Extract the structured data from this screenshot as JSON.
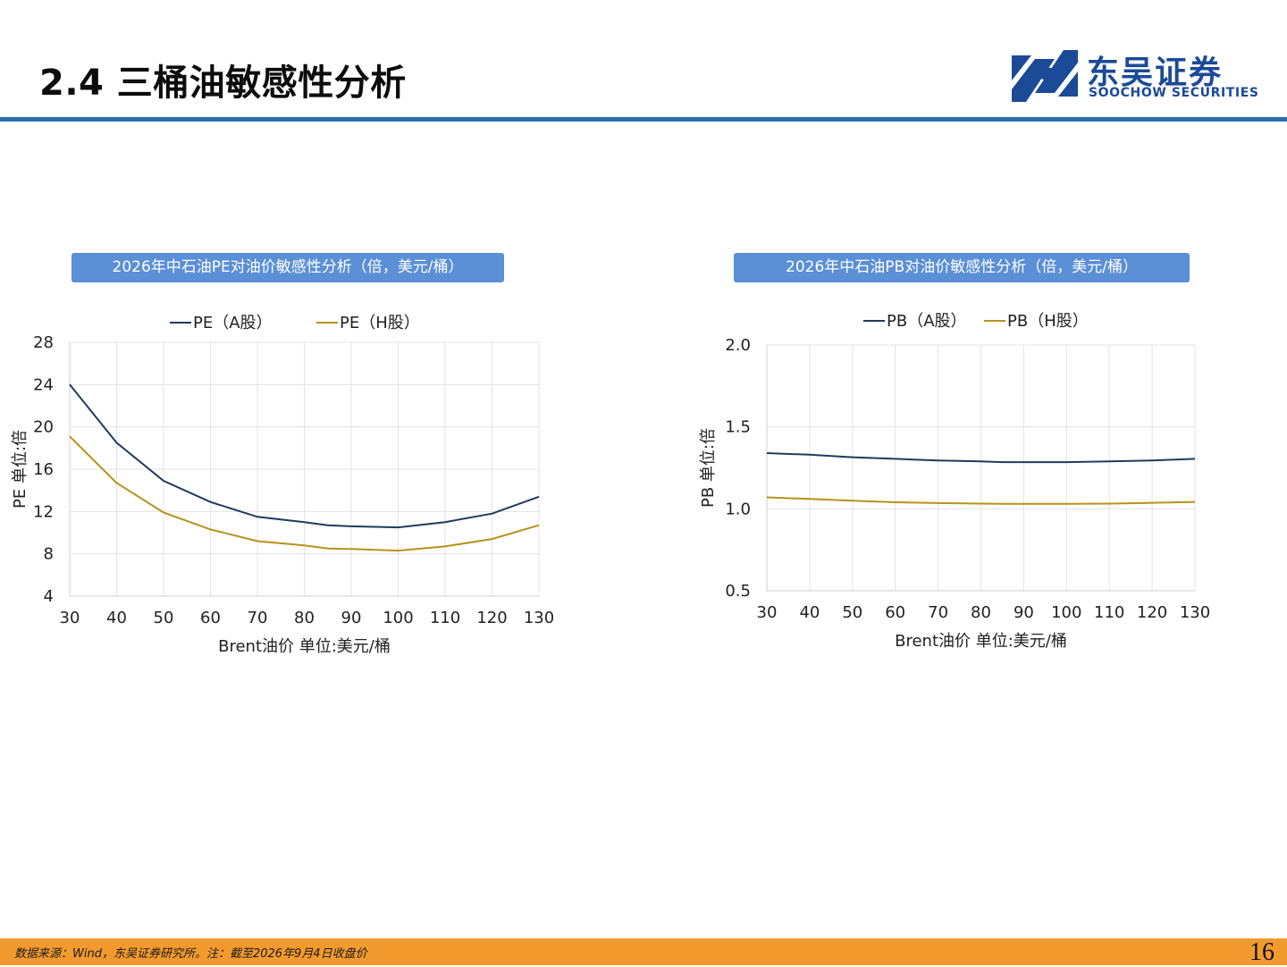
{
  "header": {
    "title": "2.4 三桶油敏感性分析",
    "brand_cn": "东吴证券",
    "brand_en": "SOOCHOW SECURITIES"
  },
  "colors": {
    "series_a": "#1f3a5f",
    "series_h": "#b8921a",
    "banner": "#5b8fd6",
    "header_rule": "#2e6db4",
    "footer": "#f29a2e",
    "brand": "#1b4a97"
  },
  "chart_data": [
    {
      "type": "line",
      "title": "2026年中石油PE对油价敏感性分析（倍，美元/桶）",
      "xlabel": "Brent油价  单位:美元/桶",
      "ylabel": "PE  单位:倍",
      "x": [
        30,
        40,
        50,
        60,
        70,
        80,
        85,
        90,
        100,
        110,
        120,
        130
      ],
      "x_ticks": [
        30,
        40,
        50,
        60,
        70,
        80,
        90,
        100,
        110,
        120,
        130
      ],
      "xlim": [
        30,
        130
      ],
      "ylim": [
        4,
        28
      ],
      "y_ticks": [
        4,
        8,
        12,
        16,
        20,
        24,
        28
      ],
      "grid": true,
      "legend": "top-center",
      "series": [
        {
          "name": "PE（A股）",
          "values": [
            24.0,
            18.5,
            14.9,
            12.9,
            11.5,
            11.0,
            10.7,
            10.6,
            10.5,
            11.0,
            11.8,
            13.4
          ]
        },
        {
          "name": "PE（H股）",
          "values": [
            19.1,
            14.7,
            11.9,
            10.3,
            9.2,
            8.8,
            8.5,
            8.45,
            8.3,
            8.7,
            9.4,
            10.7
          ]
        }
      ]
    },
    {
      "type": "line",
      "title": "2026年中石油PB对油价敏感性分析（倍，美元/桶）",
      "xlabel": "Brent油价  单位:美元/桶",
      "ylabel": "PB  单位:倍",
      "x": [
        30,
        40,
        50,
        60,
        70,
        80,
        85,
        90,
        100,
        110,
        120,
        130
      ],
      "x_ticks": [
        30,
        40,
        50,
        60,
        70,
        80,
        90,
        100,
        110,
        120,
        130
      ],
      "xlim": [
        30,
        130
      ],
      "ylim": [
        0.5,
        2.0
      ],
      "y_ticks": [
        "0.5",
        "1.0",
        "1.5",
        "2.0"
      ],
      "grid": true,
      "legend": "top-center",
      "series": [
        {
          "name": "PB（A股）",
          "values": [
            1.34,
            1.33,
            1.315,
            1.305,
            1.295,
            1.29,
            1.285,
            1.285,
            1.285,
            1.29,
            1.295,
            1.305
          ]
        },
        {
          "name": "PB（H股）",
          "values": [
            1.07,
            1.06,
            1.05,
            1.04,
            1.035,
            1.032,
            1.03,
            1.03,
            1.03,
            1.032,
            1.037,
            1.042
          ]
        }
      ]
    }
  ],
  "footer": {
    "note": "数据来源：Wind，东吴证券研究所。注：截至2026年9月4日收盘价",
    "page_number": "16"
  }
}
